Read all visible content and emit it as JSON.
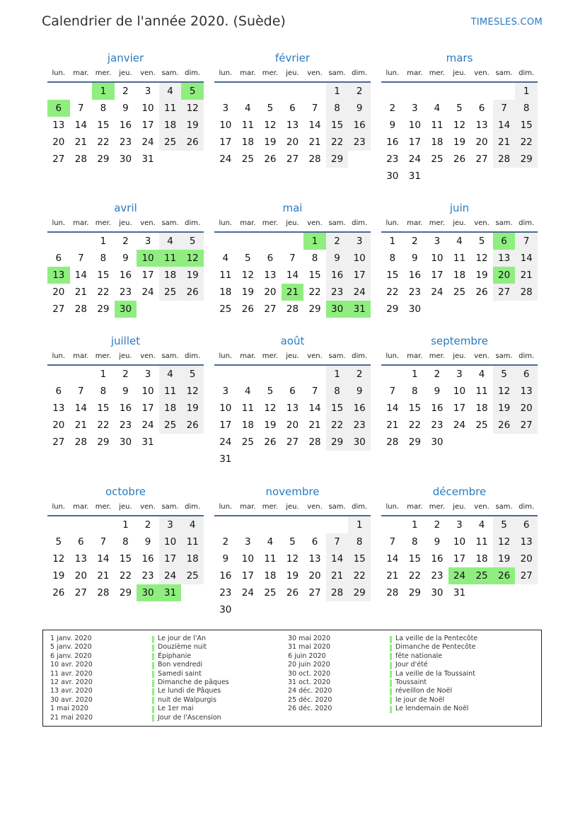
{
  "header": {
    "title": "Calendrier de l'année 2020. (Suède)",
    "brand": "TIMESLES.COM"
  },
  "weekdays": [
    "lun.",
    "mar.",
    "mer.",
    "jeu.",
    "ven.",
    "sam.",
    "dim."
  ],
  "colors": {
    "accent": "#2a7ac0",
    "holiday": "#90ee80",
    "weekend": "#f0f0f0"
  },
  "months": [
    {
      "name": "janvier",
      "offset": 2,
      "days": 31,
      "holidays": [
        1,
        5,
        6
      ]
    },
    {
      "name": "février",
      "offset": 5,
      "days": 29,
      "holidays": []
    },
    {
      "name": "mars",
      "offset": 6,
      "days": 31,
      "holidays": []
    },
    {
      "name": "avril",
      "offset": 2,
      "days": 30,
      "holidays": [
        10,
        11,
        12,
        13,
        30
      ]
    },
    {
      "name": "mai",
      "offset": 4,
      "days": 31,
      "holidays": [
        1,
        21,
        30,
        31
      ]
    },
    {
      "name": "juin",
      "offset": 0,
      "days": 30,
      "holidays": [
        6,
        20
      ]
    },
    {
      "name": "juillet",
      "offset": 2,
      "days": 31,
      "holidays": []
    },
    {
      "name": "août",
      "offset": 5,
      "days": 31,
      "holidays": []
    },
    {
      "name": "septembre",
      "offset": 1,
      "days": 30,
      "holidays": []
    },
    {
      "name": "octobre",
      "offset": 3,
      "days": 31,
      "holidays": [
        30,
        31
      ]
    },
    {
      "name": "novembre",
      "offset": 6,
      "days": 30,
      "holidays": []
    },
    {
      "name": "décembre",
      "offset": 1,
      "days": 31,
      "holidays": [
        24,
        25,
        26
      ]
    }
  ],
  "holidays_list": [
    {
      "date": "1 janv. 2020",
      "name": "Le jour de l'An"
    },
    {
      "date": "5 janv. 2020",
      "name": "Douzième nuit"
    },
    {
      "date": "6 janv. 2020",
      "name": "Épiphanie"
    },
    {
      "date": "10 avr. 2020",
      "name": "Bon vendredi"
    },
    {
      "date": "11 avr. 2020",
      "name": "Samedi saint"
    },
    {
      "date": "12 avr. 2020",
      "name": "Dimanche de pâques"
    },
    {
      "date": "13 avr. 2020",
      "name": "Le lundi de Pâques"
    },
    {
      "date": "30 avr. 2020",
      "name": "nuit de Walpurgis"
    },
    {
      "date": "1 mai 2020",
      "name": "Le 1er mai"
    },
    {
      "date": "21 mai 2020",
      "name": "Jour de l'Ascension"
    },
    {
      "date": "30 mai 2020",
      "name": "La veille de la Pentecôte"
    },
    {
      "date": "31 mai 2020",
      "name": "Dimanche de Pentecôte"
    },
    {
      "date": "6 juin 2020",
      "name": "fête nationale"
    },
    {
      "date": "20 juin 2020",
      "name": "Jour d'été"
    },
    {
      "date": "30 oct. 2020",
      "name": "La veille de la Toussaint"
    },
    {
      "date": "31 oct. 2020",
      "name": "Toussaint"
    },
    {
      "date": "24 déc. 2020",
      "name": "réveillon de Noël"
    },
    {
      "date": "25 déc. 2020",
      "name": "le jour de Noël"
    },
    {
      "date": "26 déc. 2020",
      "name": "Le lendemain de Noël"
    }
  ]
}
